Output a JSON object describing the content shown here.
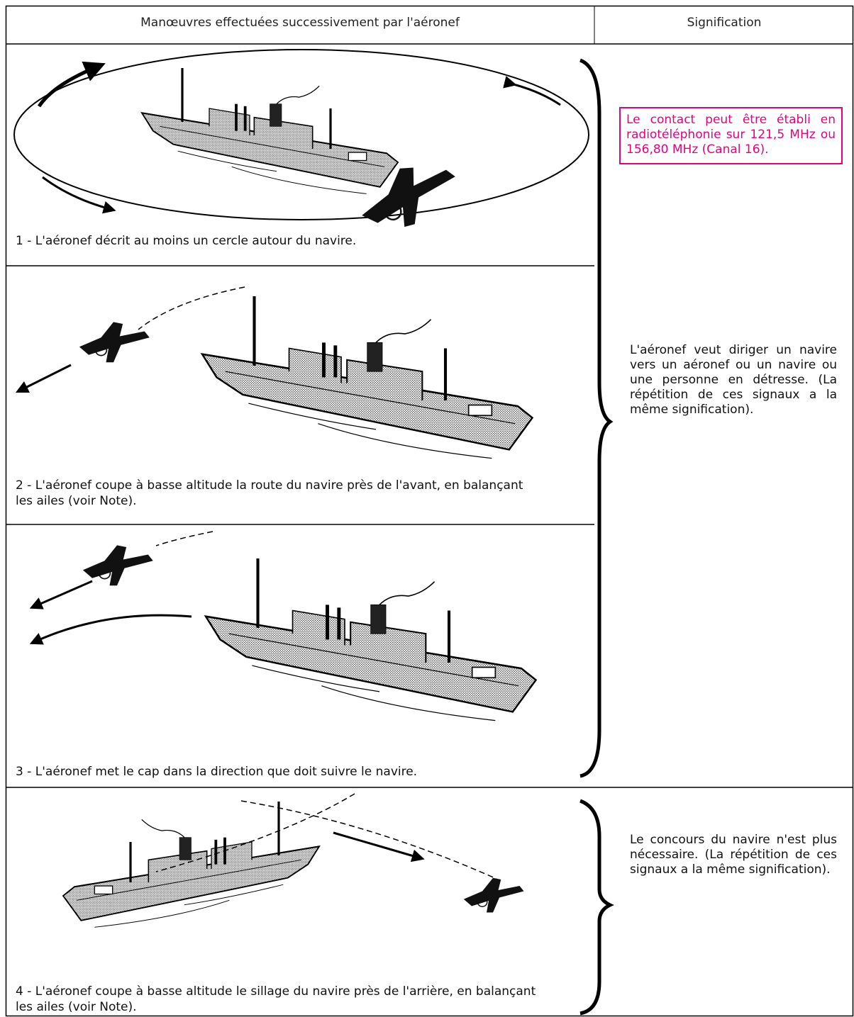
{
  "header": {
    "columns": [
      "Manœuvres effectuées successivement par l'aéronef",
      "Signification"
    ]
  },
  "rows": [
    {
      "caption": "1 - L'aéronef décrit au moins un cercle autour du navire."
    },
    {
      "caption": "2 - L'aéronef coupe à basse altitude la route du navire près de l'avant, en balançant les ailes (voir Note)."
    },
    {
      "caption": "3 - L'aéronef met le cap dans la direction que doit suivre le navire."
    },
    {
      "caption": "4 - L'aéronef coupe à basse altitude le sillage du navire près de l'arrière, en balançant les ailes (voir Note)."
    }
  ],
  "meanings": {
    "note": "Le contact peut être établi en radiotéléphonie sur 121,5 MHz ou 156,80 MHz (Canal 16).",
    "direct": "L'aéronef veut diriger un navire vers un aéronef ou un navire ou une personne en détresse. (La répétition de ces signaux a la même signification).",
    "no_longer_needed": "Le concours du navire n'est plus nécessaire. (La répétition de ces signaux a la même signification)."
  }
}
